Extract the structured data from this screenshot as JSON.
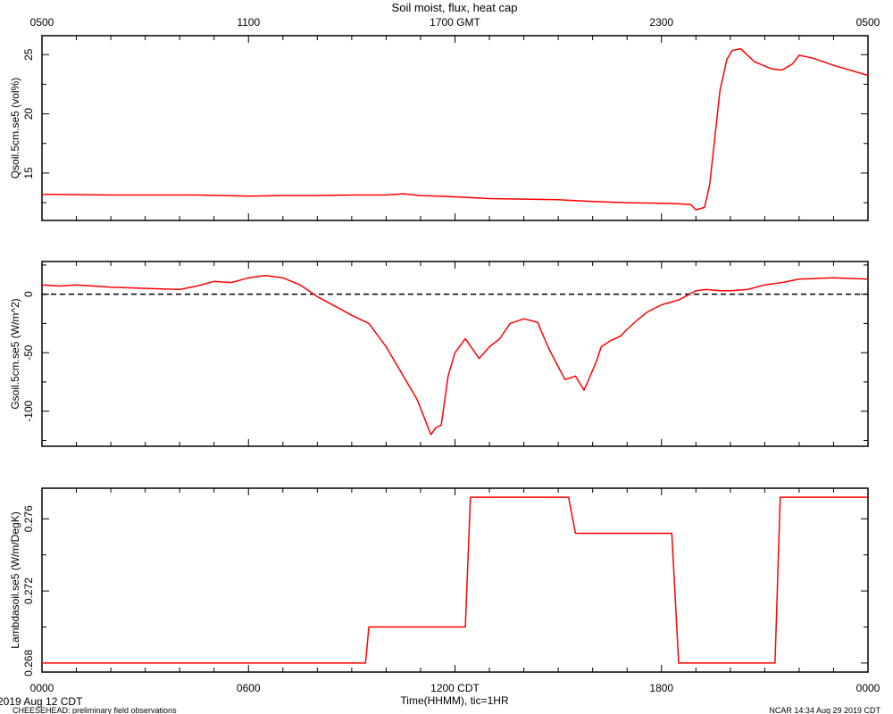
{
  "chart_data": {
    "title": "Soil moist, flux, heat cap",
    "top_axis": {
      "tick_labels": [
        "0500",
        "1100",
        "1700 GMT",
        "2300",
        "0500"
      ],
      "tick_positions_hours": [
        0,
        6,
        12,
        18,
        24
      ]
    },
    "bottom_axis": {
      "tick_labels": [
        "0000",
        "0600",
        "1200 CDT",
        "1800",
        "0000"
      ],
      "tick_positions_hours": [
        0,
        6,
        12,
        18,
        24
      ],
      "xlabel": "Time(HHMM), tic=1HR",
      "date_label": "2019 Aug 12 CDT"
    },
    "footer": {
      "left": "CHEESEHEAD: preliminary field observations",
      "right": "NCAR 14:34 Aug 29 2019 CDT"
    },
    "panels": [
      {
        "type": "line",
        "ylabel": "Qsoil.5cm.se5 (vol%)",
        "ylim": [
          11.0,
          26.6
        ],
        "yticks": [
          15,
          20,
          25
        ],
        "series": [
          {
            "color": "#ff0000",
            "x": [
              0,
              2,
              4,
              4.5,
              6,
              7,
              8,
              9,
              10,
              10.5,
              11,
              11.5,
              12,
              13,
              14,
              15,
              16,
              17,
              18,
              18.5,
              18.85,
              19,
              19.25,
              19.4,
              19.55,
              19.7,
              19.9,
              20.05,
              20.3,
              20.7,
              21.2,
              21.5,
              21.8,
              22,
              22.4,
              23,
              24
            ],
            "y": [
              13.2,
              13.15,
              13.15,
              13.15,
              13.05,
              13.1,
              13.1,
              13.15,
              13.15,
              13.25,
              13.1,
              13.05,
              13.0,
              12.85,
              12.8,
              12.75,
              12.6,
              12.5,
              12.45,
              12.4,
              12.35,
              11.9,
              12.1,
              14.0,
              18.0,
              22.0,
              24.6,
              25.35,
              25.5,
              24.4,
              23.8,
              23.7,
              24.2,
              24.95,
              24.7,
              24.1,
              23.25
            ]
          }
        ]
      },
      {
        "type": "line",
        "ylabel": "Gsoil.5cm.se5 (W/m^2)",
        "ylim": [
          -130,
          28
        ],
        "yticks": [
          0,
          -50,
          -100
        ],
        "zero_line": true,
        "series": [
          {
            "color": "#ff0000",
            "x": [
              0,
              0.5,
              1,
              2,
              3,
              4,
              4.5,
              5,
              5.5,
              6,
              6.5,
              7,
              7.5,
              8,
              8.5,
              9,
              9.5,
              10,
              10.5,
              10.9,
              11.1,
              11.3,
              11.45,
              11.6,
              11.8,
              12.0,
              12.3,
              12.7,
              13.0,
              13.3,
              13.6,
              14.0,
              14.4,
              14.7,
              15.0,
              15.2,
              15.5,
              15.75,
              15.9,
              16.1,
              16.25,
              16.5,
              16.8,
              17.0,
              17.3,
              17.6,
              18.0,
              18.5,
              19.0,
              19.3,
              19.7,
              20.0,
              20.5,
              21.0,
              21.5,
              22,
              23,
              24
            ],
            "y": [
              8,
              7,
              8,
              6,
              5,
              4,
              7,
              11,
              10,
              14,
              16,
              14,
              8,
              -2,
              -10,
              -18,
              -25,
              -45,
              -70,
              -90,
              -105,
              -120,
              -114,
              -112,
              -70,
              -50,
              -38,
              -55,
              -45,
              -38,
              -25,
              -21,
              -24,
              -45,
              -62,
              -73,
              -70,
              -82,
              -72,
              -58,
              -45,
              -40,
              -36,
              -30,
              -22,
              -15,
              -9,
              -5,
              3,
              4,
              3,
              3,
              4,
              8,
              10,
              13,
              14,
              13
            ]
          }
        ]
      },
      {
        "type": "line",
        "ylabel": "Lambdasoil.se5 (W/m/DegK)",
        "ylim": [
          0.2675,
          0.2777
        ],
        "yticks": [
          0.268,
          0.272,
          0.276
        ],
        "ytick_labels": [
          "0.268",
          "0.272",
          "0.276"
        ],
        "series": [
          {
            "color": "#ff0000",
            "x": [
              0,
              9.4,
              9.5,
              12.3,
              12.45,
              15.3,
              15.5,
              18.3,
              18.5,
              21.3,
              21.45,
              24
            ],
            "y": [
              0.268,
              0.268,
              0.27,
              0.27,
              0.2772,
              0.2772,
              0.2752,
              0.2752,
              0.268,
              0.268,
              0.2772,
              0.2772
            ]
          }
        ]
      }
    ]
  }
}
